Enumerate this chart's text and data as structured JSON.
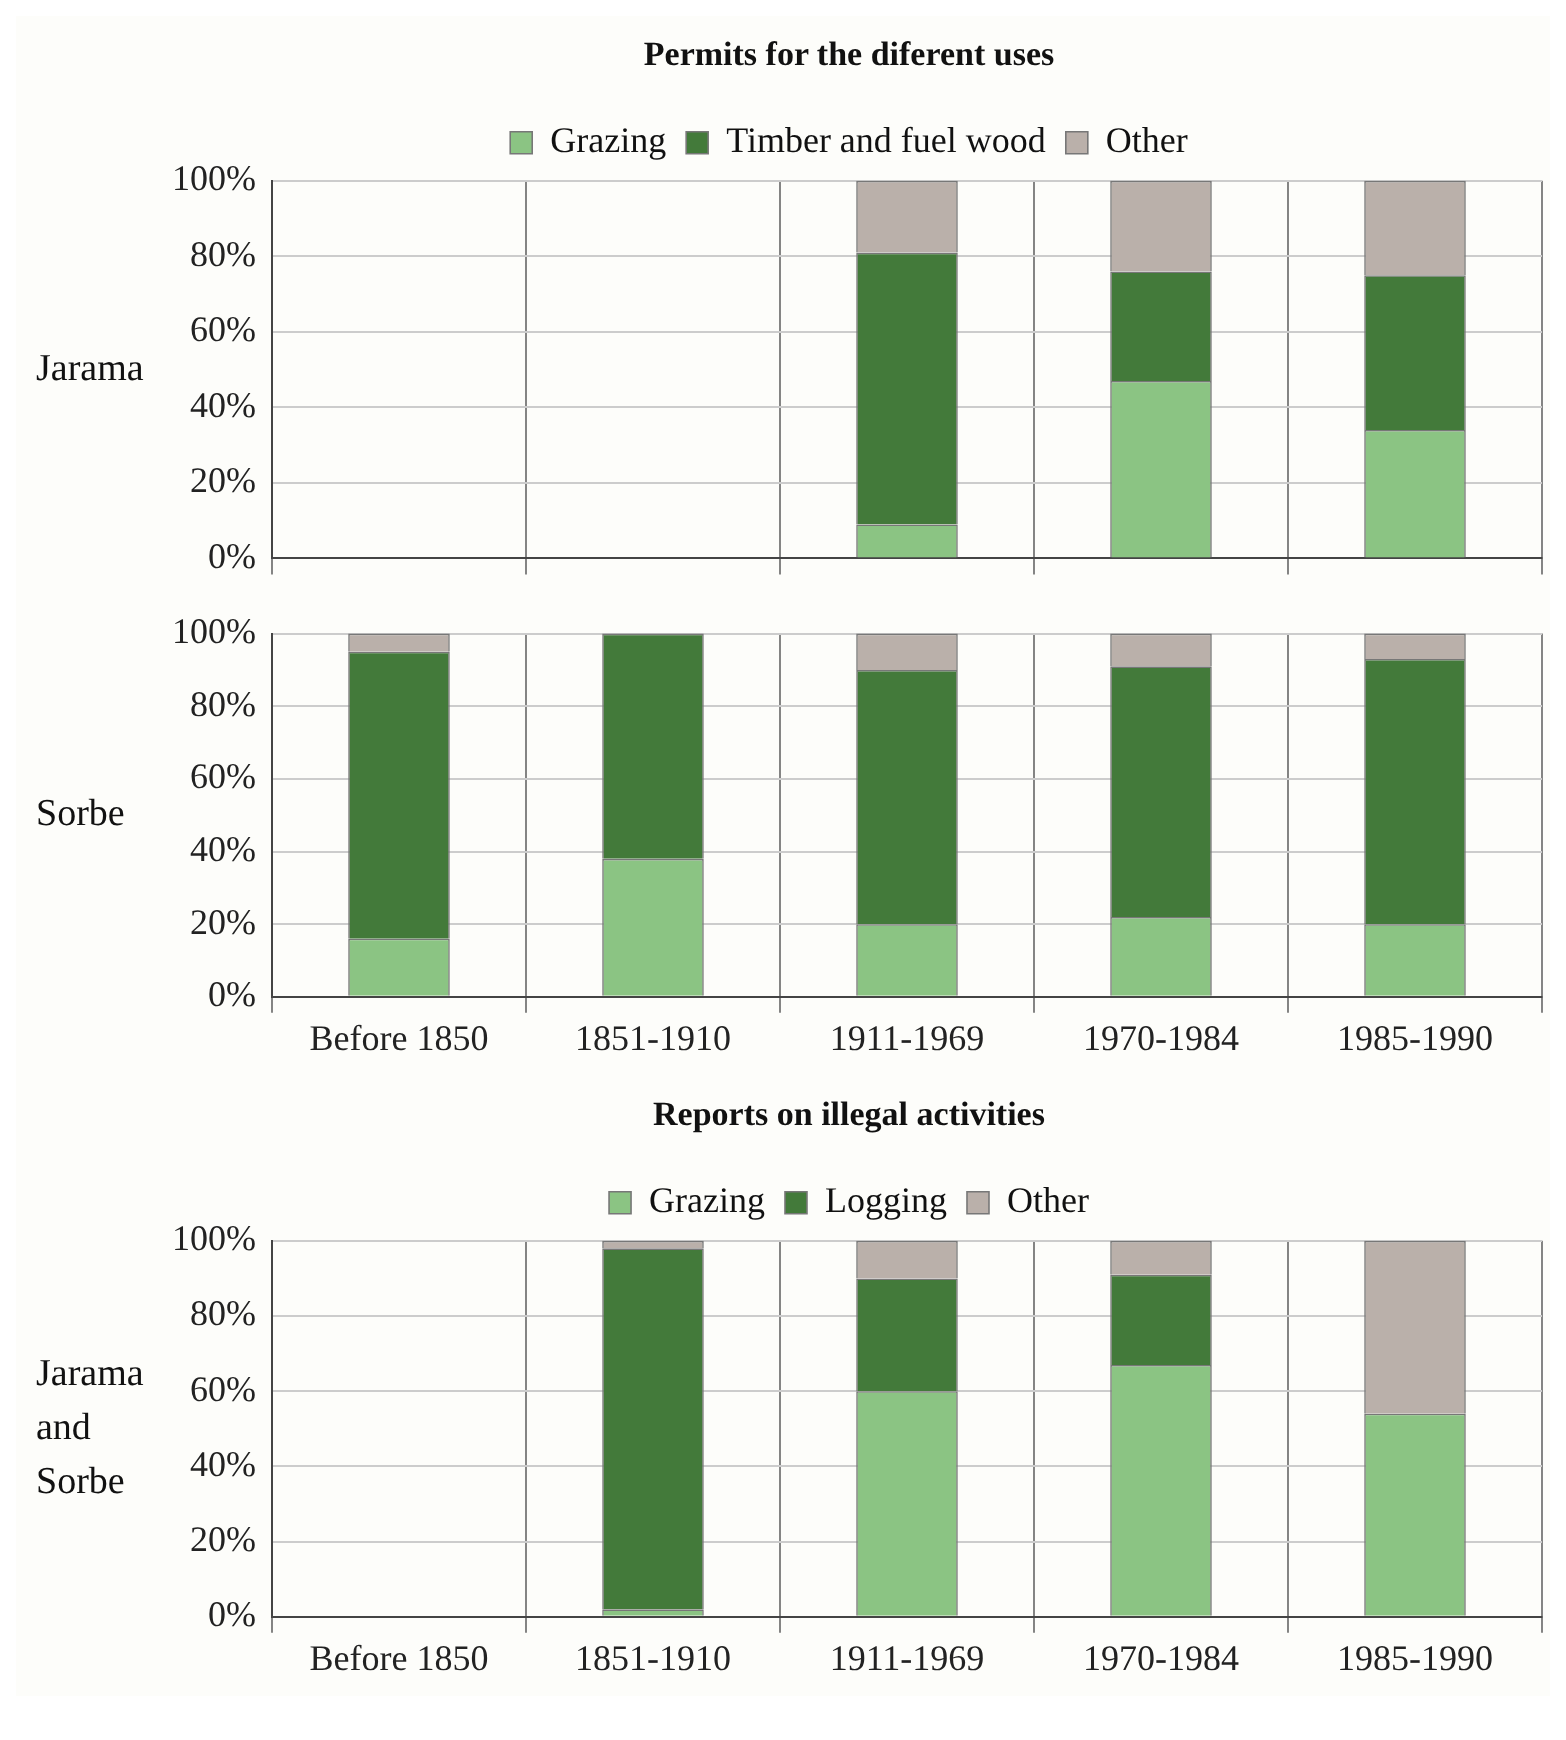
{
  "chart_data": [
    {
      "type": "bar",
      "title": "Permits for the diferent uses",
      "ylabel": "Jarama",
      "categories": [
        null,
        null,
        null,
        null,
        null
      ],
      "stacked": true,
      "legend": "top",
      "grid": true,
      "tick_labels": "y",
      "ylim": [
        0,
        100
      ],
      "yticks": [
        {
          "value": 0,
          "label": "0%"
        },
        {
          "value": 20,
          "label": "20%"
        },
        {
          "value": 40,
          "label": "40%"
        },
        {
          "value": 60,
          "label": "60%"
        },
        {
          "value": 80,
          "label": "80%"
        },
        {
          "value": 100,
          "label": "100%"
        }
      ],
      "series": [
        {
          "name": "Grazing",
          "color": "#8bc483",
          "values": [
            null,
            null,
            9,
            47,
            34
          ]
        },
        {
          "name": "Timber and fuel wood",
          "color": "#437a3a",
          "values": [
            null,
            null,
            72,
            29,
            41
          ]
        },
        {
          "name": "Other",
          "color": "#bab0aa",
          "values": [
            null,
            null,
            19,
            24,
            25
          ]
        }
      ]
    },
    {
      "type": "bar",
      "ylabel": "Sorbe",
      "categories": [
        "Before 1850",
        "1851-1910",
        "1911-1969",
        "1970-1984",
        "1985-1990"
      ],
      "stacked": true,
      "grid": true,
      "ylim": [
        0,
        100
      ],
      "yticks": [
        {
          "value": 0,
          "label": "0%"
        },
        {
          "value": 20,
          "label": "20%"
        },
        {
          "value": 40,
          "label": "40%"
        },
        {
          "value": 60,
          "label": "60%"
        },
        {
          "value": 80,
          "label": "80%"
        },
        {
          "value": 100,
          "label": "100%"
        }
      ],
      "series": [
        {
          "color": "#8bc483",
          "values": [
            16,
            38,
            20,
            22,
            20
          ]
        },
        {
          "color": "#437a3a",
          "values": [
            79,
            62,
            70,
            69,
            73
          ]
        },
        {
          "color": "#bab0aa",
          "values": [
            5,
            0,
            10,
            9,
            7
          ]
        }
      ]
    },
    {
      "type": "bar",
      "title": "Reports on illegal activities",
      "ylabel": "Jarama and Sorbe",
      "categories": [
        "Before 1850",
        "1851-1910",
        "1911-1969",
        "1970-1984",
        "1985-1990"
      ],
      "stacked": true,
      "legend": "top",
      "grid": true,
      "ylim": [
        0,
        100
      ],
      "yticks": [
        {
          "value": 0,
          "label": "0%"
        },
        {
          "value": 20,
          "label": "20%"
        },
        {
          "value": 40,
          "label": "40%"
        },
        {
          "value": 60,
          "label": "60%"
        },
        {
          "value": 80,
          "label": "80%"
        },
        {
          "value": 100,
          "label": "100%"
        }
      ],
      "series": [
        {
          "name": "Grazing",
          "color": "#8bc483",
          "values": [
            null,
            2,
            60,
            67,
            54
          ]
        },
        {
          "name": "Logging",
          "color": "#437a3a",
          "values": [
            null,
            96,
            30,
            24,
            0
          ]
        },
        {
          "name": "Other",
          "color": "#bab0aa",
          "values": [
            null,
            2,
            10,
            9,
            46
          ]
        }
      ]
    }
  ]
}
